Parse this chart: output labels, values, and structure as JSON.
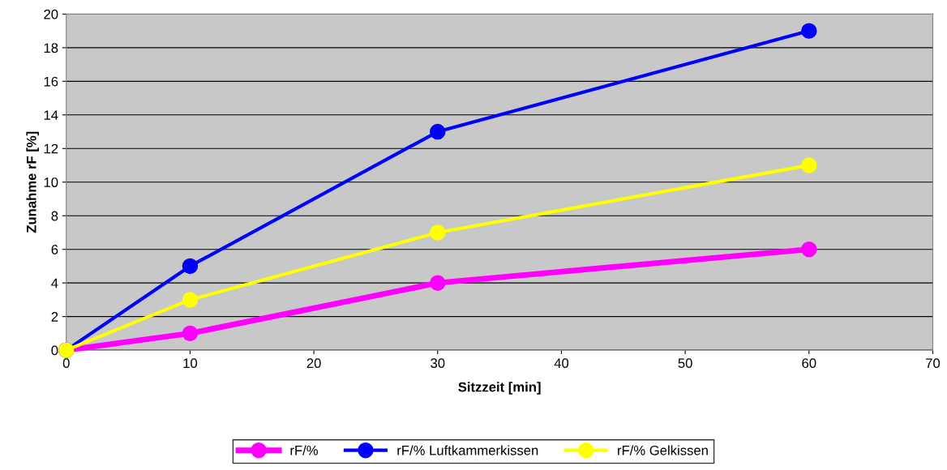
{
  "chart_data": {
    "type": "line",
    "xlabel": "Sitzzeit [min]",
    "ylabel": "Zunahme rF [%]",
    "xlim": [
      0,
      70
    ],
    "xticks": [
      0,
      10,
      20,
      30,
      40,
      50,
      60,
      70
    ],
    "ylim": [
      0,
      20
    ],
    "yticks": [
      0,
      2,
      4,
      6,
      8,
      10,
      12,
      14,
      16,
      18,
      20
    ],
    "grid": "y",
    "legend": "bottom",
    "marker": "circle",
    "line_style": "solid",
    "series": [
      {
        "name": "rF/%",
        "color": "#ff00ff",
        "x": [
          0,
          10,
          30,
          60
        ],
        "values": [
          0,
          1,
          4,
          6
        ]
      },
      {
        "name": "rF/% Luftkammerkissen",
        "color": "#0000ff",
        "x": [
          0,
          10,
          30,
          60
        ],
        "values": [
          0,
          5,
          13,
          19
        ]
      },
      {
        "name": "rF/% Gelkissen",
        "color": "#ffff00",
        "x": [
          0,
          10,
          30,
          60
        ],
        "values": [
          0,
          3,
          7,
          11
        ]
      }
    ]
  }
}
